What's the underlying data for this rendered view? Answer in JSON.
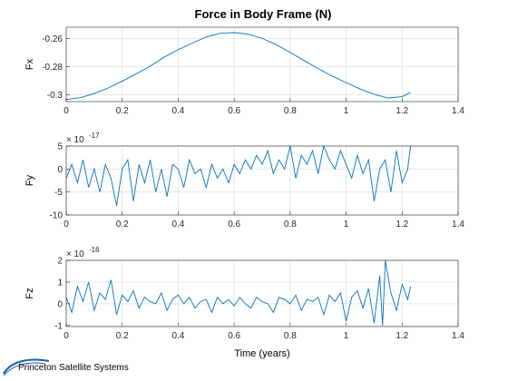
{
  "chart_data": [
    {
      "type": "line",
      "title": "Force in Body Frame (N)",
      "xlabel": "",
      "ylabel": "Fx",
      "xlim": [
        0,
        1.4
      ],
      "ylim": [
        -0.305,
        -0.252
      ],
      "xticks": [
        "0",
        "0.2",
        "0.4",
        "0.6",
        "0.8",
        "1",
        "1.2",
        "1.4"
      ],
      "yticks": [
        "-0.26",
        "-0.28",
        "-0.3"
      ],
      "ytick_values": [
        -0.26,
        -0.28,
        -0.3
      ],
      "grid": true,
      "exponent_label": "",
      "x": [
        0,
        0.05,
        0.1,
        0.15,
        0.2,
        0.25,
        0.3,
        0.35,
        0.4,
        0.45,
        0.5,
        0.55,
        0.6,
        0.65,
        0.7,
        0.75,
        0.8,
        0.85,
        0.9,
        0.95,
        1.0,
        1.05,
        1.1,
        1.15,
        1.2,
        1.23
      ],
      "y": [
        -0.3035,
        -0.3022,
        -0.2993,
        -0.2953,
        -0.2905,
        -0.2852,
        -0.2798,
        -0.2733,
        -0.268,
        -0.2633,
        -0.259,
        -0.2563,
        -0.2558,
        -0.257,
        -0.26,
        -0.2644,
        -0.27,
        -0.2758,
        -0.2815,
        -0.2868,
        -0.2915,
        -0.296,
        -0.2998,
        -0.3025,
        -0.3015,
        -0.2985
      ]
    },
    {
      "type": "line",
      "title": "",
      "xlabel": "",
      "ylabel": "Fy",
      "xlim": [
        0,
        1.4
      ],
      "ylim": [
        -10,
        5
      ],
      "xticks": [
        "0",
        "0.2",
        "0.4",
        "0.6",
        "0.8",
        "1",
        "1.2",
        "1.4"
      ],
      "yticks": [
        "5",
        "0",
        "-5",
        "-10"
      ],
      "ytick_values": [
        5,
        0,
        -5,
        -10
      ],
      "grid": true,
      "exponent_label": "× 10",
      "exponent_power": "-17",
      "x": [
        0,
        0.02,
        0.04,
        0.06,
        0.08,
        0.1,
        0.12,
        0.14,
        0.16,
        0.18,
        0.2,
        0.22,
        0.24,
        0.26,
        0.28,
        0.3,
        0.32,
        0.34,
        0.36,
        0.38,
        0.4,
        0.42,
        0.44,
        0.46,
        0.48,
        0.5,
        0.52,
        0.54,
        0.56,
        0.58,
        0.6,
        0.62,
        0.64,
        0.66,
        0.68,
        0.7,
        0.72,
        0.74,
        0.76,
        0.78,
        0.8,
        0.82,
        0.84,
        0.86,
        0.88,
        0.9,
        0.92,
        0.94,
        0.96,
        0.98,
        1.0,
        1.02,
        1.04,
        1.06,
        1.08,
        1.1,
        1.12,
        1.14,
        1.16,
        1.18,
        1.2,
        1.22,
        1.23
      ],
      "y": [
        -2,
        1,
        -3,
        2,
        -4,
        0,
        -5,
        1,
        -2,
        -8,
        0,
        2,
        -7,
        1,
        -3,
        2,
        -5,
        0,
        -6,
        1,
        0,
        -4,
        2,
        -1,
        0,
        -4,
        1,
        -2,
        0,
        -3,
        1,
        -1,
        2,
        0,
        3,
        1,
        4,
        -1,
        2,
        0,
        5,
        -2,
        3,
        1,
        4,
        -1,
        5,
        2,
        0,
        4,
        1,
        -2,
        3,
        -1,
        2,
        -7,
        0,
        2,
        -5,
        4,
        -3,
        0,
        5
      ]
    },
    {
      "type": "line",
      "title": "",
      "xlabel": "Time (years)",
      "ylabel": "Fz",
      "xlim": [
        0,
        1.4
      ],
      "ylim": [
        -1.05,
        2
      ],
      "xticks": [
        "0",
        "0.2",
        "0.4",
        "0.6",
        "0.8",
        "1",
        "1.2",
        "1.4"
      ],
      "yticks": [
        "2",
        "1",
        "0",
        "-1"
      ],
      "ytick_values": [
        2,
        1,
        0,
        -1
      ],
      "grid": true,
      "exponent_label": "× 10",
      "exponent_power": "-16",
      "x": [
        0,
        0.02,
        0.04,
        0.06,
        0.08,
        0.1,
        0.12,
        0.14,
        0.16,
        0.18,
        0.2,
        0.22,
        0.24,
        0.26,
        0.28,
        0.3,
        0.32,
        0.34,
        0.36,
        0.38,
        0.4,
        0.42,
        0.44,
        0.46,
        0.48,
        0.5,
        0.52,
        0.54,
        0.56,
        0.58,
        0.6,
        0.62,
        0.64,
        0.66,
        0.68,
        0.7,
        0.72,
        0.74,
        0.76,
        0.78,
        0.8,
        0.82,
        0.84,
        0.86,
        0.88,
        0.9,
        0.92,
        0.94,
        0.96,
        0.98,
        1.0,
        1.02,
        1.04,
        1.06,
        1.08,
        1.1,
        1.12,
        1.13,
        1.14,
        1.16,
        1.18,
        1.2,
        1.22,
        1.23
      ],
      "y": [
        0.3,
        -0.4,
        0.8,
        0.1,
        1.0,
        -0.3,
        0.5,
        0.2,
        1.1,
        -0.5,
        0.4,
        0.1,
        0.6,
        -0.2,
        0.3,
        0.1,
        0.0,
        0.5,
        -0.3,
        0.2,
        0.4,
        0.0,
        0.3,
        -0.2,
        0.1,
        0.2,
        -0.4,
        0.3,
        0.0,
        0.2,
        -0.1,
        0.3,
        0.0,
        -0.2,
        0.3,
        0.1,
        0.0,
        -0.4,
        0.3,
        0.2,
        0.0,
        0.4,
        -0.3,
        0.2,
        0.1,
        0.3,
        -0.5,
        0.4,
        0.1,
        0.5,
        -0.8,
        0.3,
        0.6,
        -0.2,
        0.7,
        -0.9,
        1.3,
        -1.0,
        2.0,
        0.5,
        -0.3,
        0.9,
        0.2,
        0.8
      ]
    }
  ],
  "logo": {
    "text": "Princeton Satellite Systems",
    "color": "#1f5fa8"
  },
  "line_color": "#0072bd"
}
